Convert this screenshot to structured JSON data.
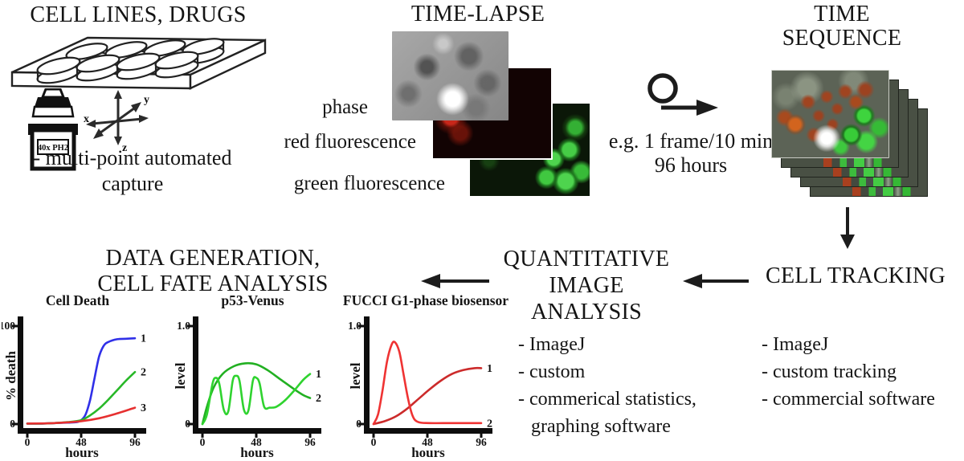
{
  "colors": {
    "background": "#ffffff",
    "text": "#151515"
  },
  "cell_lines": {
    "title": "CELL LINES, DRUGS",
    "objective_label": "40x PH2",
    "axis_x": "x",
    "axis_y": "y",
    "axis_z": "z",
    "caption_line1": "- multi-point automated",
    "caption_line2": "capture"
  },
  "time_lapse": {
    "title": "TIME-LAPSE",
    "channels": [
      "phase",
      "red fluorescence",
      "green fluorescence"
    ]
  },
  "acquisition": {
    "rate": "e.g. 1 frame/10 min",
    "duration": "96 hours"
  },
  "time_sequence": {
    "title_line1": "TIME",
    "title_line2": "SEQUENCE"
  },
  "cell_tracking": {
    "title": "CELL TRACKING",
    "items": [
      "- ImageJ",
      "- custom tracking",
      "- commercial software"
    ]
  },
  "quantitative_analysis": {
    "title_line1": "QUANTITATIVE",
    "title_line2": "IMAGE",
    "title_line3": "ANALYSIS",
    "items": [
      "- ImageJ",
      "- custom",
      "- commerical statistics,",
      "graphing software"
    ]
  },
  "data_generation": {
    "title_line1": "DATA GENERATION,",
    "title_line2": "CELL FATE ANALYSIS"
  },
  "chart_data": [
    {
      "type": "line",
      "title": "Cell Death",
      "xlabel": "hours",
      "ylabel": "% death",
      "x_ticks": [
        "0",
        "48",
        "96"
      ],
      "y_ticks": [
        "0",
        "100"
      ],
      "xlim": [
        0,
        96
      ],
      "ylim": [
        0,
        100
      ],
      "grid": false,
      "series": [
        {
          "name": "1",
          "color": "#3030e8",
          "x": [
            0,
            12,
            24,
            36,
            44,
            48,
            52,
            56,
            60,
            64,
            68,
            72,
            80,
            88,
            96
          ],
          "y": [
            0.5,
            0.5,
            1,
            1.5,
            2,
            4,
            10,
            25,
            48,
            70,
            81,
            85,
            88,
            88.5,
            89
          ]
        },
        {
          "name": "2",
          "color": "#28b828",
          "x": [
            0,
            12,
            24,
            36,
            48,
            56,
            64,
            72,
            80,
            88,
            96
          ],
          "y": [
            0.5,
            0.5,
            1,
            2,
            4,
            9,
            16,
            25,
            35,
            45,
            54
          ]
        },
        {
          "name": "3",
          "color": "#e63030",
          "x": [
            0,
            24,
            48,
            64,
            80,
            96
          ],
          "y": [
            0.5,
            1,
            3,
            6,
            11,
            17
          ]
        }
      ]
    },
    {
      "type": "line",
      "title": "p53-Venus",
      "xlabel": "hours",
      "ylabel": "level",
      "x_ticks": [
        "0",
        "48",
        "96"
      ],
      "y_ticks": [
        "0",
        "1.0"
      ],
      "xlim": [
        0,
        96
      ],
      "ylim": [
        0,
        1
      ],
      "grid": false,
      "series": [
        {
          "name": "2",
          "color": "#22b022",
          "x": [
            0,
            4,
            10,
            18,
            28,
            38,
            48,
            58,
            70,
            82,
            90,
            96
          ],
          "y": [
            0,
            0.18,
            0.38,
            0.52,
            0.6,
            0.63,
            0.62,
            0.56,
            0.46,
            0.36,
            0.3,
            0.27
          ]
        },
        {
          "name": "1",
          "color": "#2fd32f",
          "x": [
            0,
            4,
            9,
            12,
            15,
            19,
            23,
            27,
            30,
            33,
            37,
            41,
            45,
            48,
            51,
            55,
            60,
            66,
            74,
            82,
            90,
            96
          ],
          "y": [
            0,
            0.1,
            0.42,
            0.48,
            0.42,
            0.15,
            0.13,
            0.45,
            0.5,
            0.45,
            0.15,
            0.14,
            0.45,
            0.48,
            0.42,
            0.18,
            0.17,
            0.18,
            0.25,
            0.35,
            0.46,
            0.52
          ]
        }
      ]
    },
    {
      "type": "line",
      "title": "FUCCI G1-phase biosensor",
      "xlabel": "hours",
      "ylabel": "level",
      "x_ticks": [
        "0",
        "48",
        "96"
      ],
      "y_ticks": [
        "0",
        "1.0"
      ],
      "xlim": [
        0,
        96
      ],
      "ylim": [
        0,
        1
      ],
      "grid": false,
      "series": [
        {
          "name": "1",
          "color": "#cc2b2b",
          "x": [
            0,
            10,
            20,
            30,
            40,
            50,
            60,
            70,
            80,
            90,
            96
          ],
          "y": [
            0,
            0.03,
            0.08,
            0.16,
            0.26,
            0.36,
            0.45,
            0.52,
            0.56,
            0.58,
            0.58
          ]
        },
        {
          "name": "2",
          "color": "#ef3333",
          "x": [
            0,
            4,
            8,
            12,
            16,
            19,
            23,
            27,
            31,
            35,
            40,
            50,
            70,
            96
          ],
          "y": [
            0,
            0.1,
            0.35,
            0.65,
            0.82,
            0.85,
            0.75,
            0.5,
            0.25,
            0.08,
            0.02,
            0.01,
            0.01,
            0.01
          ]
        }
      ]
    }
  ]
}
